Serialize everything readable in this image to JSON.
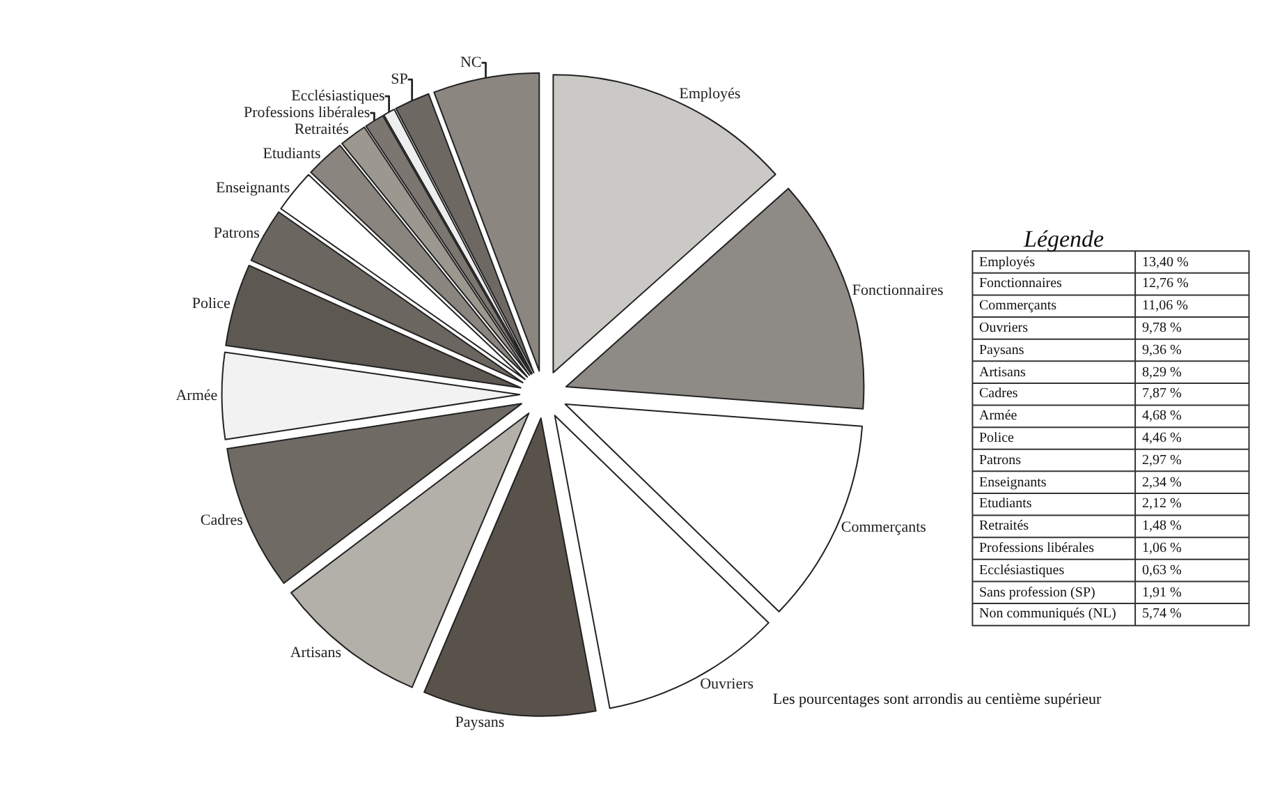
{
  "chart_data": [
    {
      "type": "pie",
      "categories": [
        "Employés",
        "Fonctionnaires",
        "Commerçants",
        "Ouvriers",
        "Paysans",
        "Artisans",
        "Cadres",
        "Armée",
        "Police",
        "Patrons",
        "Enseignants",
        "Etudiants",
        "Retraités",
        "Professions libérales",
        "Ecclésiastiques",
        "SP",
        "NC"
      ],
      "values": [
        13.4,
        12.76,
        11.06,
        9.78,
        9.36,
        8.29,
        7.87,
        4.68,
        4.46,
        2.97,
        2.34,
        2.12,
        1.48,
        1.06,
        0.63,
        1.91,
        5.74
      ],
      "colors": [
        "#cbc9c6",
        "#8e8a85",
        "#ffffff",
        "#ffffff",
        "#58524a",
        "#b3afa9",
        "#6f6a64",
        "#f2f2f2",
        "#5d5852",
        "#6b665f",
        "#ffffff",
        "#8a857e",
        "#9c978f",
        "#7b766f",
        "#eeeeee",
        "#6d6862",
        "#8b8680"
      ],
      "legend": false
    },
    {
      "type": "other",
      "title": "Légende",
      "categories": [
        "Employés",
        "Fonctionnaires",
        "Commerçants",
        "Ouvriers",
        "Paysans",
        "Artisans",
        "Cadres",
        "Armée",
        "Police",
        "Patrons",
        "Enseignants",
        "Etudiants",
        "Retraités",
        "Professions libérales",
        "Ecclésiastiques",
        "Sans profession (SP)",
        "Non communiqués (NL)"
      ],
      "value_labels": [
        "13,40 %",
        "12,76 %",
        "11,06 %",
        "9,78 %",
        "9,36 %",
        "8,29 %",
        "7,87 %",
        "4,68 %",
        "4,46 %",
        "2,97 %",
        "2,34 %",
        "2,12 %",
        "1,48 %",
        "1,06 %",
        "0,63 %",
        "1,91 %",
        "5,74 %"
      ],
      "annotations": [
        "Les pourcentages sont arrondis au centième supérieur"
      ]
    }
  ]
}
